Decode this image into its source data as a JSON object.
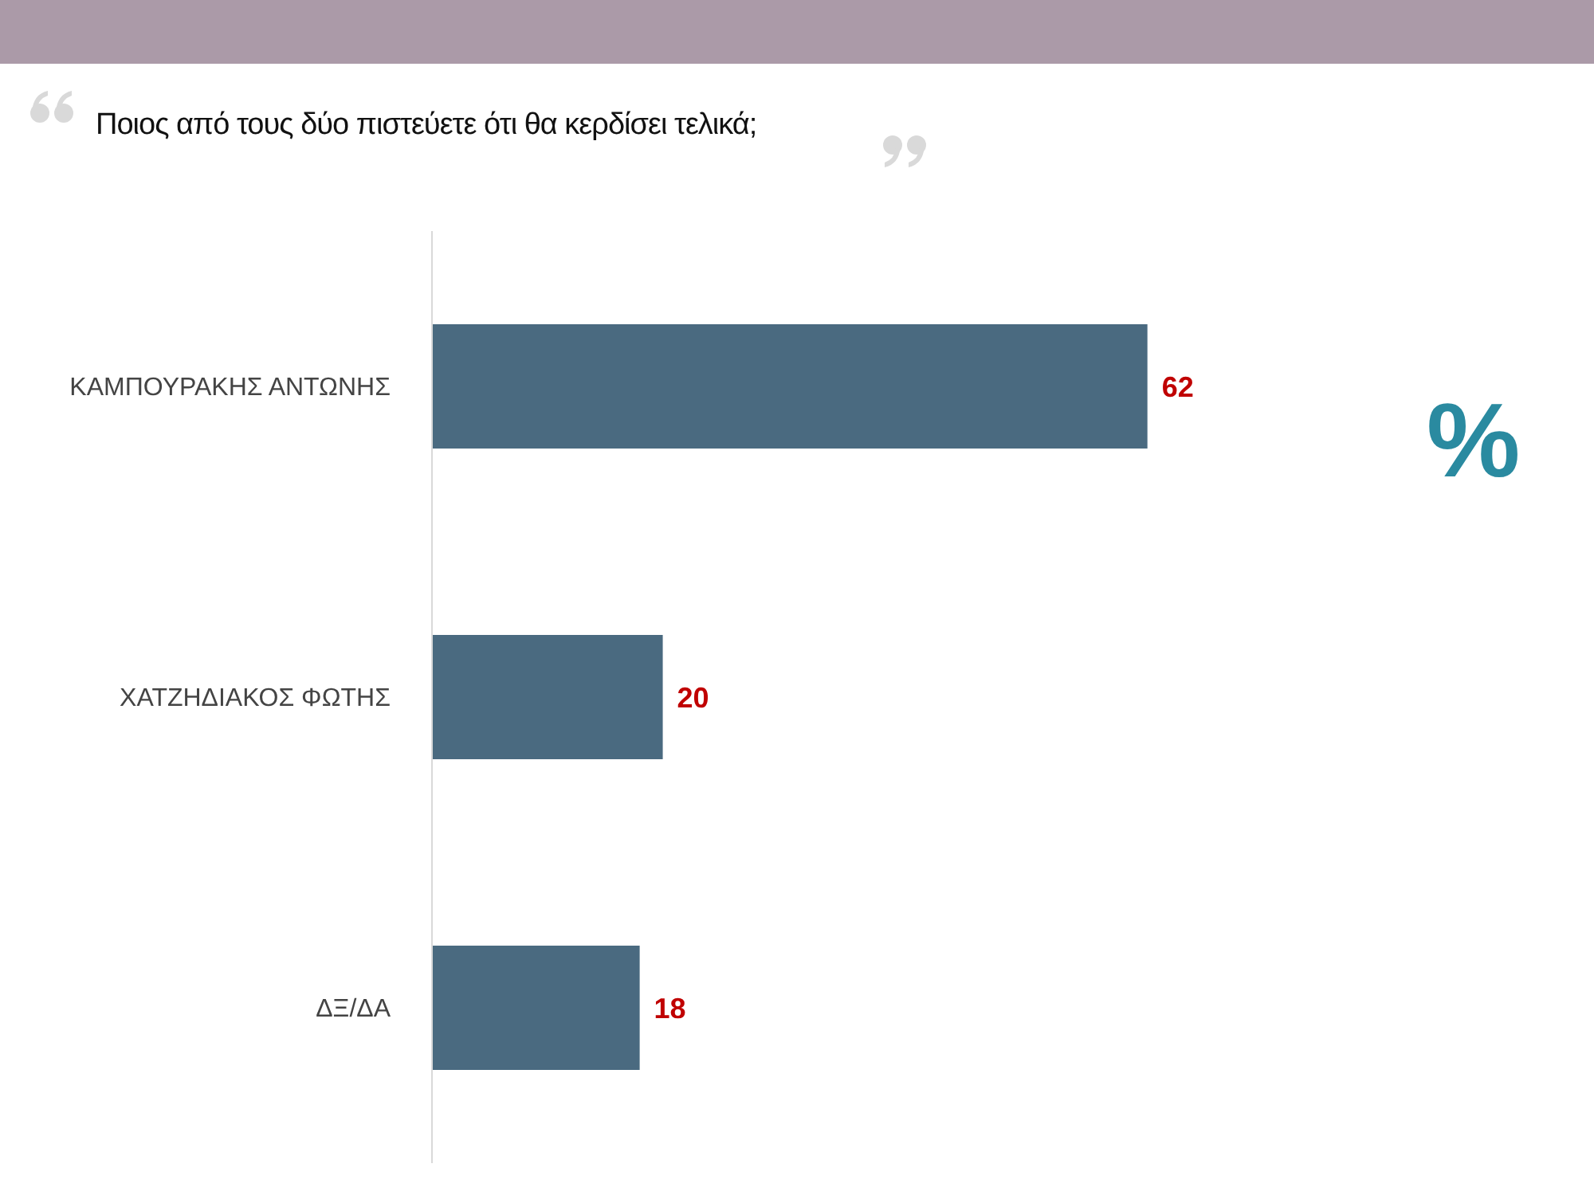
{
  "chart_data": {
    "type": "bar",
    "orientation": "horizontal",
    "title": "Ποιος από τους δύο πιστεύετε ότι θα κερδίσει τελικά;",
    "categories": [
      "ΚΑΜΠΟΥΡΑΚΗΣ ΑΝΤΩΝΗΣ",
      "ΧΑΤΖΗΔΙΑΚΟΣ ΦΩΤΗΣ",
      "ΔΞ/ΔΑ"
    ],
    "values": [
      62,
      20,
      18
    ],
    "color": "#4a6a80",
    "data_labels": true,
    "annotations": [
      "%"
    ]
  }
}
